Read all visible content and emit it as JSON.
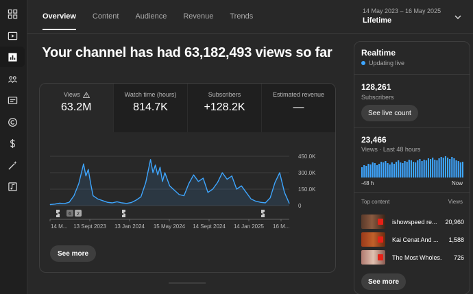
{
  "nav": {
    "icons": [
      "dashboard-icon",
      "content-icon",
      "analytics-icon",
      "community-icon",
      "subtitles-icon",
      "copyright-icon",
      "earn-icon",
      "customization-icon",
      "audio-library-icon"
    ],
    "active_index": 2
  },
  "tabs": [
    {
      "label": "Overview",
      "active": true
    },
    {
      "label": "Content",
      "active": false
    },
    {
      "label": "Audience",
      "active": false
    },
    {
      "label": "Revenue",
      "active": false
    },
    {
      "label": "Trends",
      "active": false
    }
  ],
  "date_range": {
    "dates": "14 May 2023 – 16 May 2025",
    "label": "Lifetime"
  },
  "headline": "Your channel has had 63,182,493 views so far",
  "metrics": [
    {
      "label": "Views",
      "value": "63.2M",
      "warning": true
    },
    {
      "label": "Watch time (hours)",
      "value": "814.7K"
    },
    {
      "label": "Subscribers",
      "value": "+128.2K"
    },
    {
      "label": "Estimated revenue",
      "value": "—"
    }
  ],
  "chart_data": {
    "type": "line",
    "title": "Views",
    "ylim": [
      0,
      450000
    ],
    "y_ticks": [
      0,
      150000,
      300000,
      450000
    ],
    "y_tick_labels": [
      "0",
      "150.0K",
      "300.0K",
      "450.0K"
    ],
    "x_tick_labels": [
      "14 M...",
      "13 Sept 2023",
      "13 Jan 2024",
      "15 May 2024",
      "14 Sept 2024",
      "14 Jan 2025",
      "16 M..."
    ],
    "x": [
      0,
      2,
      4,
      6,
      8,
      10,
      12,
      14,
      15,
      16,
      17,
      18,
      20,
      22,
      24,
      26,
      28,
      30,
      32,
      34,
      36,
      38,
      40,
      42,
      43,
      44,
      45,
      46,
      47,
      48,
      50,
      52,
      54,
      56,
      58,
      60,
      62,
      64,
      66,
      68,
      70,
      72,
      74,
      76,
      78,
      80,
      82,
      84,
      86,
      88,
      90,
      92,
      94,
      96,
      98,
      100
    ],
    "values": [
      10000,
      14000,
      22000,
      18000,
      30000,
      90000,
      200000,
      380000,
      270000,
      330000,
      200000,
      90000,
      60000,
      45000,
      30000,
      25000,
      35000,
      25000,
      20000,
      28000,
      50000,
      80000,
      210000,
      420000,
      300000,
      370000,
      280000,
      350000,
      220000,
      300000,
      180000,
      140000,
      100000,
      90000,
      200000,
      280000,
      220000,
      250000,
      120000,
      150000,
      210000,
      300000,
      240000,
      270000,
      150000,
      180000,
      120000,
      60000,
      40000,
      30000,
      25000,
      70000,
      210000,
      300000,
      120000,
      20000
    ],
    "series_color": "#3ea6ff",
    "badge_labels": [
      "6",
      "2"
    ]
  },
  "see_more_label": "See more",
  "realtime": {
    "title": "Realtime",
    "status": "Updating live",
    "subscribers_value": "128,261",
    "subscribers_label": "Subscribers",
    "see_live_count": "See live count",
    "views_value": "23,466",
    "views_label": "Views · Last 48 hours",
    "bars": [
      30,
      36,
      34,
      40,
      38,
      44,
      42,
      36,
      40,
      46,
      44,
      48,
      42,
      38,
      44,
      40,
      46,
      50,
      44,
      42,
      48,
      46,
      52,
      50,
      46,
      44,
      50,
      54,
      48,
      52,
      50,
      56,
      54,
      58,
      52,
      50,
      56,
      60,
      58,
      62,
      58,
      54,
      60,
      56,
      50,
      48,
      44,
      46
    ],
    "axis_start": "-48 h",
    "axis_end": "Now",
    "top_content_label": "Top content",
    "views_column_label": "Views",
    "top_content": [
      {
        "title": "ishowspeed re...",
        "views": "20,960"
      },
      {
        "title": "Kai Cenat And ...",
        "views": "1,588"
      },
      {
        "title": "The Most Wholes...",
        "views": "726"
      }
    ],
    "see_more": "See more"
  }
}
